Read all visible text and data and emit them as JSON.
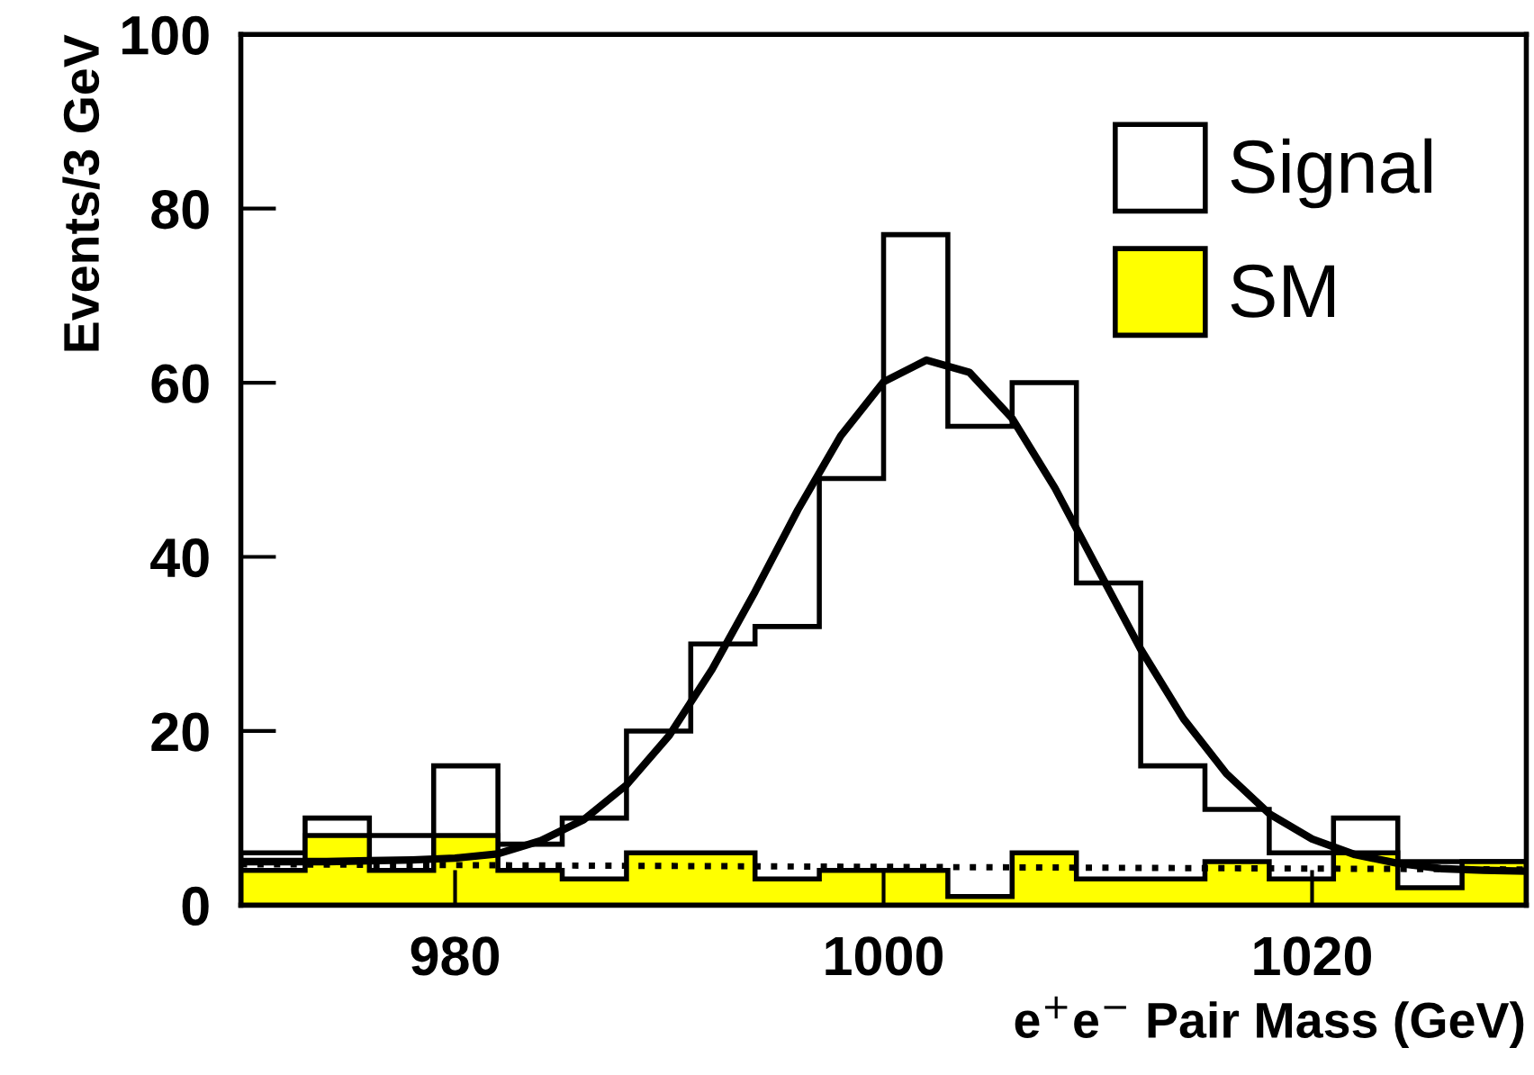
{
  "chart_data": {
    "type": "histogram",
    "xlabel": "e$^{+}$e$^{−}$ Pair Mass (GeV)",
    "ylabel": "Events/3 GeV",
    "bins": [
      970,
      973,
      976,
      979,
      982,
      985,
      988,
      991,
      994,
      997,
      1000,
      1003,
      1006,
      1009,
      1012,
      1015,
      1018,
      1021,
      1024,
      1027,
      1030
    ],
    "series": [
      {
        "name": "Signal",
        "type": "histogram",
        "color": "#ffffff",
        "values": [
          6,
          10,
          8,
          16,
          7,
          10,
          20,
          30,
          32,
          49,
          77,
          55,
          60,
          37,
          16,
          11,
          6,
          10,
          5,
          5
        ]
      },
      {
        "name": "SM",
        "type": "histogram",
        "color": "#ffff00",
        "values": [
          4,
          8,
          4,
          8,
          4,
          3,
          6,
          6,
          3,
          4,
          4,
          1,
          6,
          3,
          3,
          5,
          3,
          6,
          2,
          5
        ]
      },
      {
        "type": "line",
        "color": "#000000",
        "line_style": "solid",
        "x": [
          970,
          972,
          974,
          976,
          978,
          980,
          982,
          984,
          986,
          988,
          990,
          992,
          994,
          996,
          998,
          1000,
          1002,
          1004,
          1006,
          1008,
          1010,
          1012,
          1014,
          1016,
          1018,
          1020,
          1022,
          1024,
          1026,
          1028,
          1030
        ],
        "values": [
          5.0,
          5.0,
          5.0,
          5.1,
          5.2,
          5.4,
          5.9,
          7.4,
          9.8,
          13.8,
          19.5,
          27.1,
          36,
          45.4,
          53.9,
          60.1,
          62.6,
          61.2,
          55.9,
          47.9,
          38.6,
          29.4,
          21.4,
          15.1,
          10.5,
          7.6,
          5.8,
          4.8,
          4.2,
          4.0,
          3.9
        ]
      },
      {
        "type": "line",
        "color": "#000000",
        "line_style": "dotted",
        "x": [
          970,
          1000,
          1030
        ],
        "values": [
          4.7,
          4.4,
          4.1
        ]
      }
    ],
    "xlim": [
      970,
      1030
    ],
    "xticks": [
      980,
      1000,
      1020
    ],
    "ylim": [
      0,
      100
    ],
    "yticks": [
      0,
      20,
      40,
      60,
      80,
      100
    ],
    "legend": "top right",
    "grid": false
  }
}
